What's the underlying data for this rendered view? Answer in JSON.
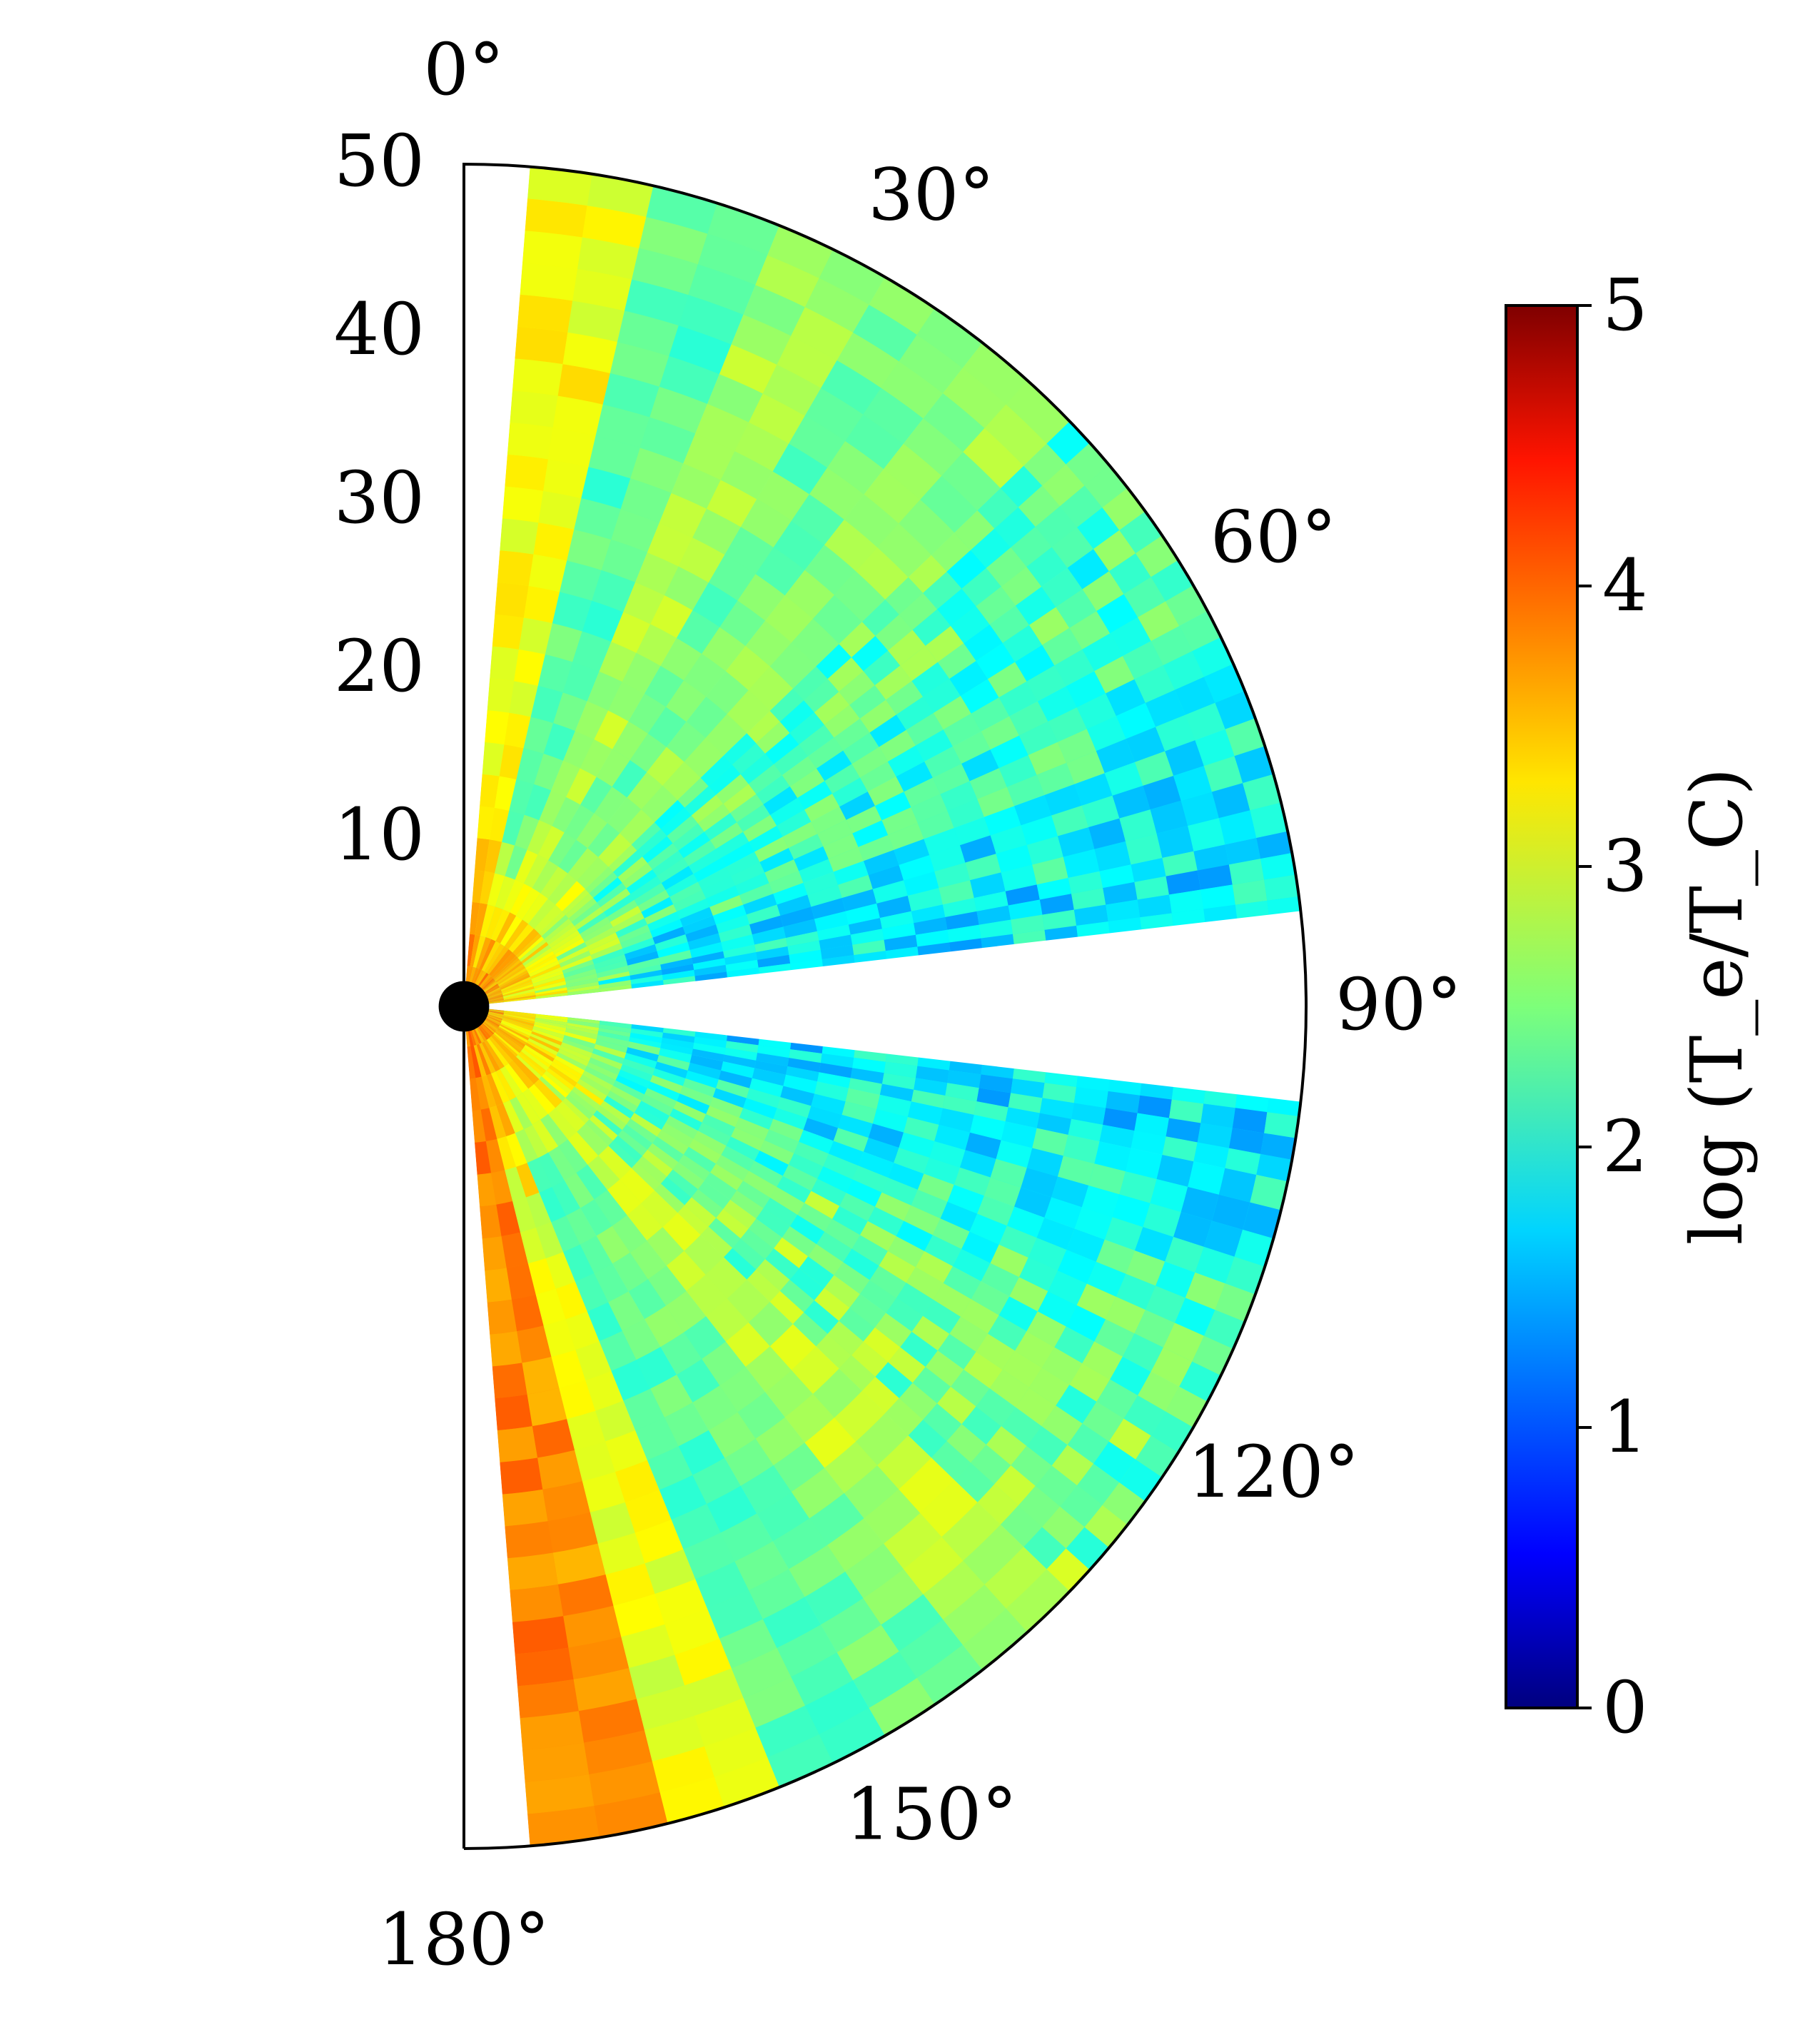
{
  "chart_data": {
    "type": "heatmap",
    "projection": "polar-half",
    "grid": false,
    "radial_axis": {
      "range": [
        0,
        50
      ],
      "ticks": [
        10,
        20,
        30,
        40,
        50
      ],
      "tick_labels": [
        "10",
        "20",
        "30",
        "40",
        "50"
      ]
    },
    "angular_axis": {
      "range_deg": [
        0,
        180
      ],
      "zero_location": "top",
      "direction": "clockwise",
      "ticks_deg": [
        0,
        30,
        60,
        90,
        120,
        150,
        180
      ],
      "tick_labels": [
        "0°",
        "30°",
        "60°",
        "90°",
        "120°",
        "150°",
        "180°"
      ]
    },
    "colorbar": {
      "label": "log (T_e/T_C)",
      "colormap": "jet",
      "range": [
        0,
        5
      ],
      "ticks": [
        0,
        1,
        2,
        3,
        4,
        5
      ],
      "tick_labels": [
        "0",
        "1",
        "2",
        "3",
        "4",
        "5"
      ],
      "placement": "right"
    },
    "central_object": {
      "radius": 1.5,
      "color": "#000000"
    },
    "empty_regions": [
      {
        "theta_deg": [
          0,
          4.5
        ],
        "r": [
          0,
          50
        ]
      },
      {
        "theta_deg": [
          84,
          96
        ],
        "r": [
          0,
          50
        ],
        "shape": "widening wedge about the equator"
      }
    ],
    "wedges": [
      {
        "theta_deg": [
          4.5,
          13
        ],
        "log_Te_over_TC": 3.1
      },
      {
        "theta_deg": [
          13,
          22
        ],
        "log_Te_over_TC": 2.3
      },
      {
        "theta_deg": [
          22,
          30
        ],
        "log_Te_over_TC": 2.7
      },
      {
        "theta_deg": [
          30,
          38
        ],
        "log_Te_over_TC": 2.4
      },
      {
        "theta_deg": [
          38,
          46
        ],
        "log_Te_over_TC": 2.6
      },
      {
        "theta_deg": [
          46,
          54
        ],
        "log_Te_over_TC": 2.3
      },
      {
        "theta_deg": [
          54,
          62
        ],
        "log_Te_over_TC": 2.2
      },
      {
        "theta_deg": [
          62,
          70
        ],
        "log_Te_over_TC": 2.1
      },
      {
        "theta_deg": [
          70,
          78
        ],
        "log_Te_over_TC": 1.9
      },
      {
        "theta_deg": [
          78,
          84
        ],
        "log_Te_over_TC": 1.8
      },
      {
        "theta_deg": [
          96,
          102
        ],
        "log_Te_over_TC": 1.8
      },
      {
        "theta_deg": [
          102,
          110
        ],
        "log_Te_over_TC": 1.9
      },
      {
        "theta_deg": [
          110,
          118
        ],
        "log_Te_over_TC": 2.2
      },
      {
        "theta_deg": [
          118,
          126
        ],
        "log_Te_over_TC": 2.4
      },
      {
        "theta_deg": [
          126,
          134
        ],
        "log_Te_over_TC": 2.5
      },
      {
        "theta_deg": [
          134,
          142
        ],
        "log_Te_over_TC": 2.8
      },
      {
        "theta_deg": [
          142,
          150
        ],
        "log_Te_over_TC": 2.4
      },
      {
        "theta_deg": [
          150,
          158
        ],
        "log_Te_over_TC": 2.3
      },
      {
        "theta_deg": [
          158,
          166
        ],
        "log_Te_over_TC": 3.0
      },
      {
        "theta_deg": [
          166,
          175.5
        ],
        "log_Te_over_TC": 3.7
      }
    ],
    "inner_region": {
      "r": [
        0,
        12
      ],
      "log_Te_over_TC": 3.8
    }
  }
}
